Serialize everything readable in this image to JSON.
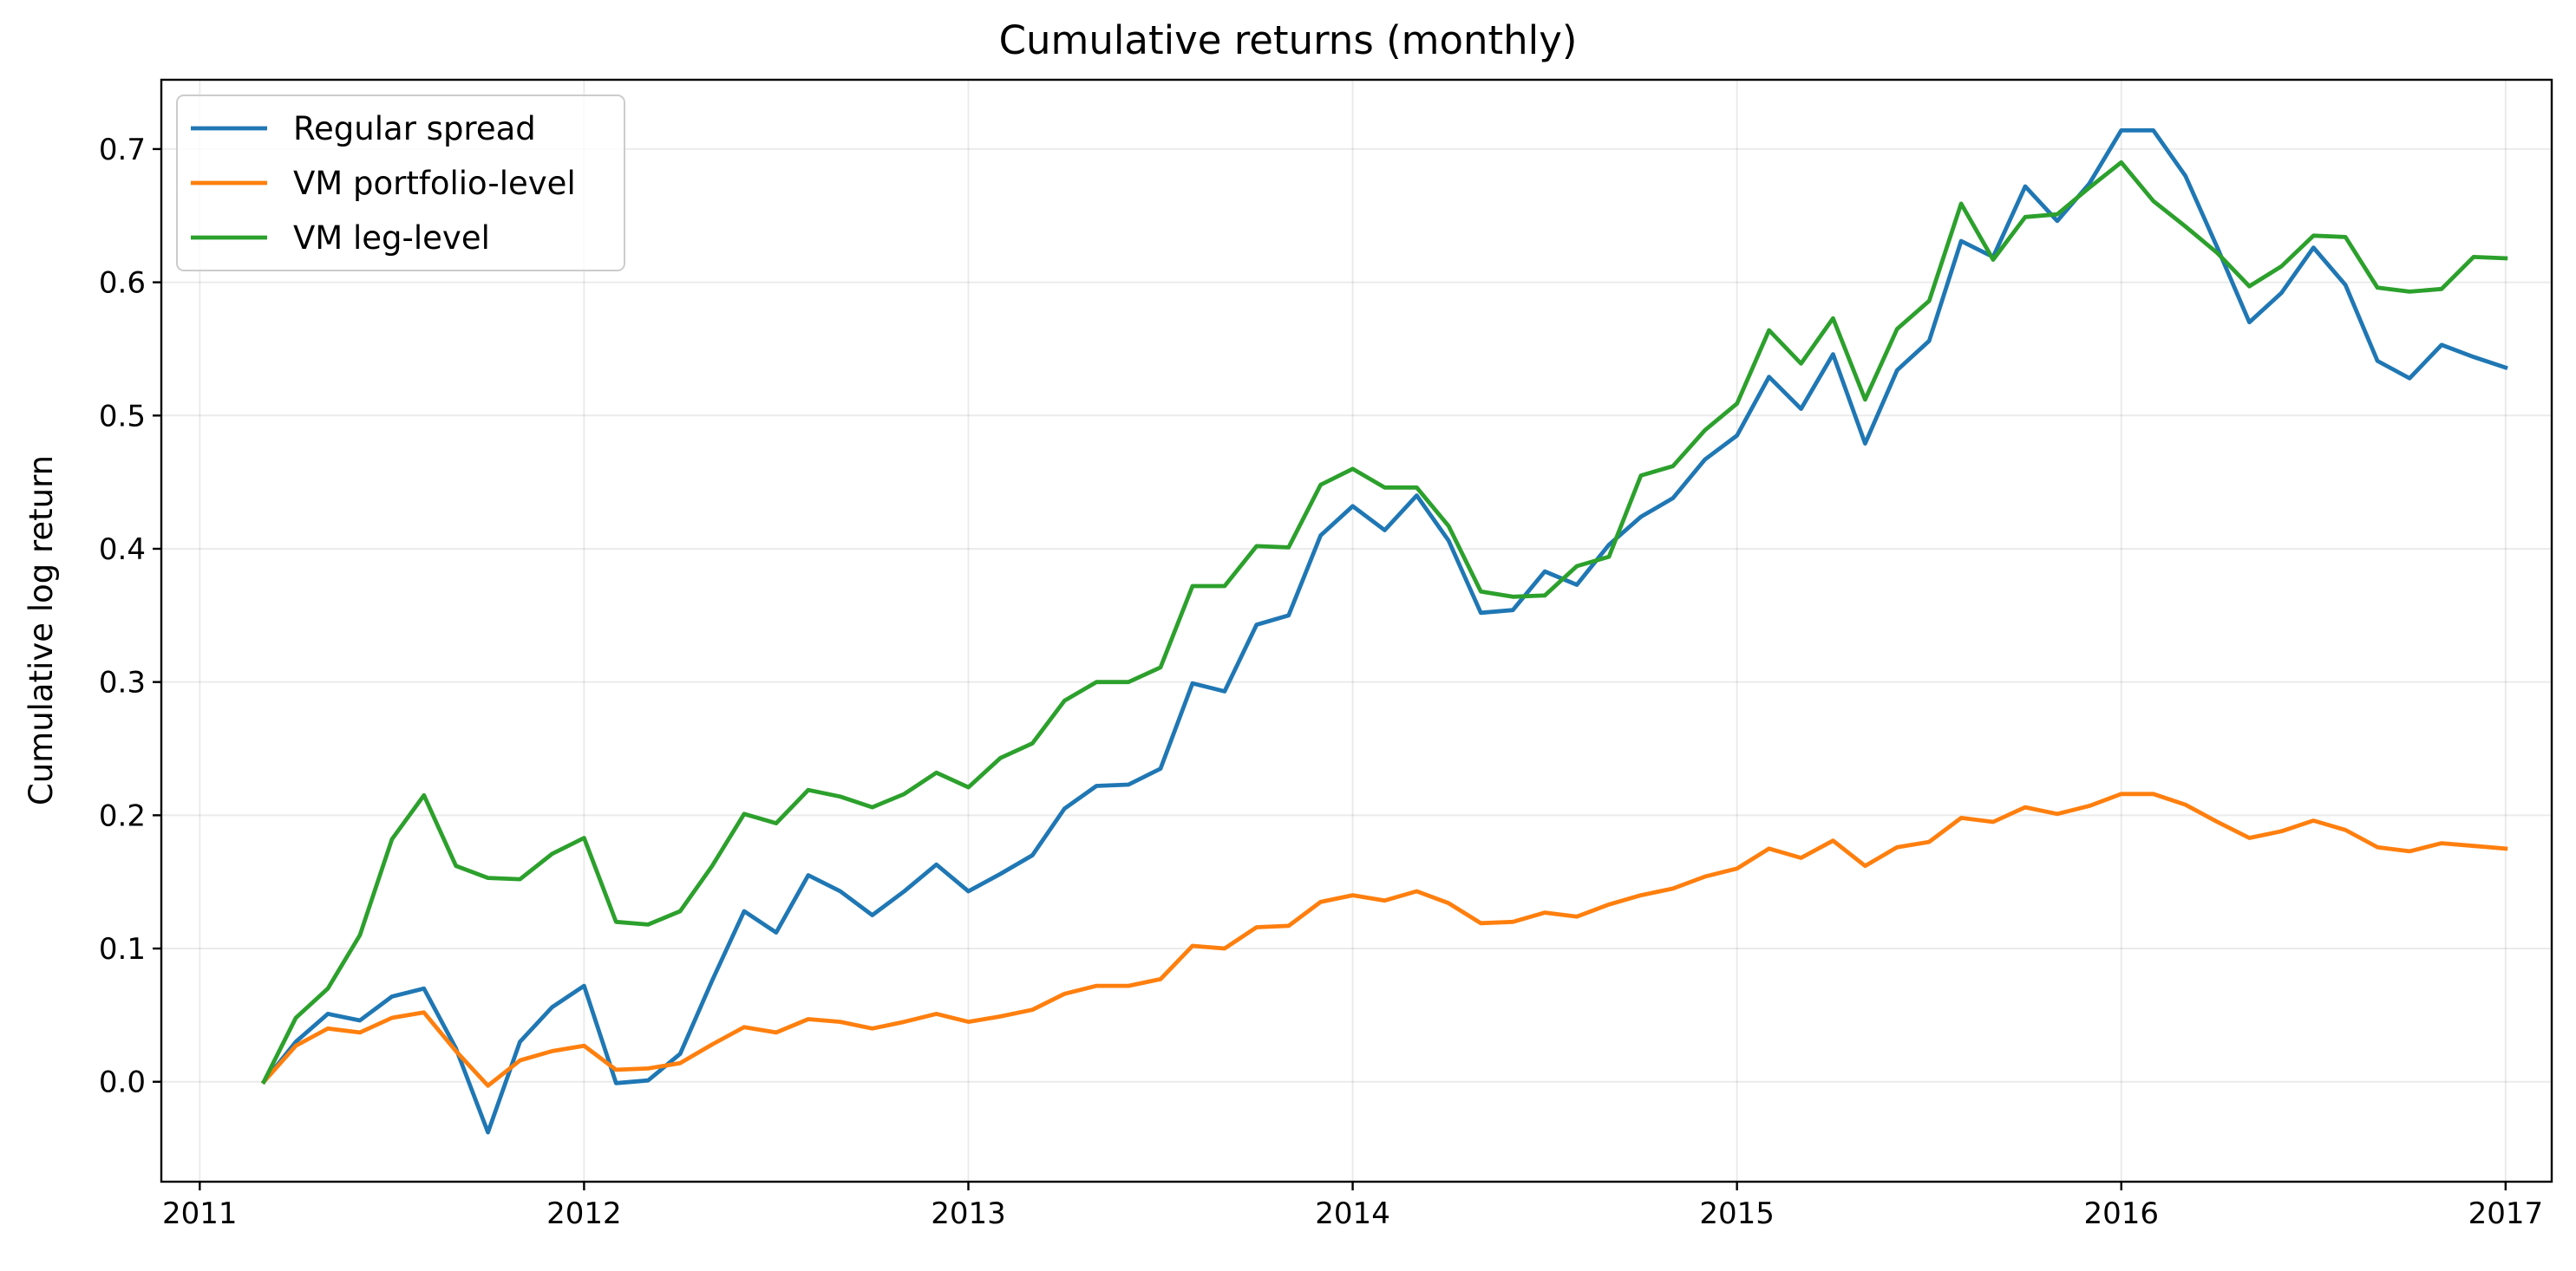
{
  "chart_data": {
    "type": "line",
    "title": "Cumulative returns (monthly)",
    "xlabel": "",
    "ylabel": "Cumulative log return",
    "x_axis": "date (year)",
    "xlim": [
      2010.9,
      2017.12
    ],
    "ylim": [
      -0.075,
      0.752
    ],
    "x_ticks": [
      2011,
      2012,
      2013,
      2014,
      2015,
      2016,
      2017
    ],
    "x_tick_labels": [
      "2011",
      "2012",
      "2013",
      "2014",
      "2015",
      "2016",
      "2017"
    ],
    "y_ticks": [
      0.0,
      0.1,
      0.2,
      0.3,
      0.4,
      0.5,
      0.6,
      0.7
    ],
    "y_tick_labels": [
      "0.0",
      "0.1",
      "0.2",
      "0.3",
      "0.4",
      "0.5",
      "0.6",
      "0.7"
    ],
    "grid": true,
    "legend": "top-left",
    "x": [
      "2011-03",
      "2011-04",
      "2011-05",
      "2011-06",
      "2011-07",
      "2011-08",
      "2011-09",
      "2011-10",
      "2011-11",
      "2011-12",
      "2012-01",
      "2012-02",
      "2012-03",
      "2012-04",
      "2012-05",
      "2012-06",
      "2012-07",
      "2012-08",
      "2012-09",
      "2012-10",
      "2012-11",
      "2012-12",
      "2013-01",
      "2013-02",
      "2013-03",
      "2013-04",
      "2013-05",
      "2013-06",
      "2013-07",
      "2013-08",
      "2013-09",
      "2013-10",
      "2013-11",
      "2013-12",
      "2014-01",
      "2014-02",
      "2014-03",
      "2014-04",
      "2014-05",
      "2014-06",
      "2014-07",
      "2014-08",
      "2014-09",
      "2014-10",
      "2014-11",
      "2014-12",
      "2015-01",
      "2015-02",
      "2015-03",
      "2015-04",
      "2015-05",
      "2015-06",
      "2015-07",
      "2015-08",
      "2015-09",
      "2015-10",
      "2015-11",
      "2015-12",
      "2016-01",
      "2016-02",
      "2016-03",
      "2016-04",
      "2016-05",
      "2016-06",
      "2016-07",
      "2016-08",
      "2016-09",
      "2016-10",
      "2016-11",
      "2016-12",
      "2017-01"
    ],
    "series": [
      {
        "name": "Regular spread",
        "color": "#1f77b4",
        "values": [
          0.0,
          0.03,
          0.051,
          0.046,
          0.064,
          0.07,
          0.025,
          -0.038,
          0.03,
          0.056,
          0.072,
          -0.001,
          0.001,
          0.021,
          0.076,
          0.128,
          0.112,
          0.155,
          0.143,
          0.125,
          0.143,
          0.163,
          0.143,
          0.156,
          0.17,
          0.205,
          0.222,
          0.223,
          0.235,
          0.299,
          0.293,
          0.343,
          0.35,
          0.41,
          0.432,
          0.414,
          0.44,
          0.406,
          0.352,
          0.354,
          0.383,
          0.373,
          0.403,
          0.424,
          0.438,
          0.467,
          0.485,
          0.529,
          0.505,
          0.546,
          0.479,
          0.534,
          0.556,
          0.631,
          0.619,
          0.672,
          0.646,
          0.674,
          0.714,
          0.714,
          0.68,
          0.626,
          0.57,
          0.592,
          0.626,
          0.598,
          0.541,
          0.528,
          0.553,
          0.544,
          0.536
        ]
      },
      {
        "name": "VM portfolio-level",
        "color": "#ff7f0e",
        "values": [
          0.0,
          0.027,
          0.04,
          0.037,
          0.048,
          0.052,
          0.023,
          -0.003,
          0.016,
          0.023,
          0.027,
          0.009,
          0.01,
          0.014,
          0.028,
          0.041,
          0.037,
          0.047,
          0.045,
          0.04,
          0.045,
          0.051,
          0.045,
          0.049,
          0.054,
          0.066,
          0.072,
          0.072,
          0.077,
          0.102,
          0.1,
          0.116,
          0.117,
          0.135,
          0.14,
          0.136,
          0.143,
          0.134,
          0.119,
          0.12,
          0.127,
          0.124,
          0.133,
          0.14,
          0.145,
          0.154,
          0.16,
          0.175,
          0.168,
          0.181,
          0.162,
          0.176,
          0.18,
          0.198,
          0.195,
          0.206,
          0.201,
          0.207,
          0.216,
          0.216,
          0.208,
          0.195,
          0.183,
          0.188,
          0.196,
          0.189,
          0.176,
          0.173,
          0.179,
          0.177,
          0.175
        ]
      },
      {
        "name": "VM leg-level",
        "color": "#2ca02c",
        "values": [
          0.0,
          0.048,
          0.07,
          0.11,
          0.182,
          0.215,
          0.162,
          0.153,
          0.152,
          0.171,
          0.183,
          0.12,
          0.118,
          0.128,
          0.162,
          0.201,
          0.194,
          0.219,
          0.214,
          0.206,
          0.216,
          0.232,
          0.221,
          0.243,
          0.254,
          0.286,
          0.3,
          0.3,
          0.311,
          0.372,
          0.372,
          0.402,
          0.401,
          0.448,
          0.46,
          0.446,
          0.446,
          0.417,
          0.368,
          0.364,
          0.365,
          0.387,
          0.394,
          0.455,
          0.462,
          0.489,
          0.509,
          0.564,
          0.539,
          0.573,
          0.512,
          0.565,
          0.586,
          0.659,
          0.617,
          0.649,
          0.651,
          0.671,
          0.69,
          0.661,
          0.642,
          0.622,
          0.597,
          0.612,
          0.635,
          0.634,
          0.596,
          0.593,
          0.595,
          0.619,
          0.618
        ]
      }
    ]
  }
}
